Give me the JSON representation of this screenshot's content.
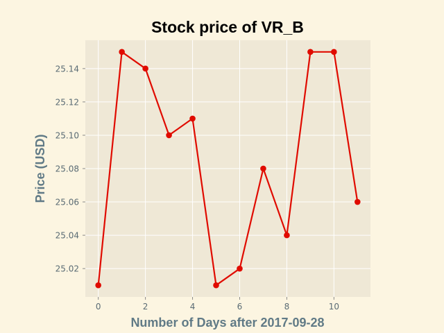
{
  "chart_data": {
    "type": "line",
    "title": "Stock price of VR_B",
    "xlabel": "Number of Days after 2017-09-28",
    "ylabel": "Price (USD)",
    "x": [
      0,
      1,
      2,
      3,
      4,
      5,
      6,
      7,
      8,
      9,
      10,
      11
    ],
    "y": [
      25.01,
      25.15,
      25.14,
      25.1,
      25.11,
      25.01,
      25.02,
      25.08,
      25.04,
      25.15,
      25.15,
      25.06
    ],
    "xticks": [
      "0",
      "2",
      "4",
      "6",
      "8",
      "10"
    ],
    "yticks": [
      "25.02",
      "25.04",
      "25.06",
      "25.08",
      "25.10",
      "25.12",
      "25.14"
    ],
    "xlim": [
      -0.55,
      11.55
    ],
    "ylim": [
      25.003,
      25.157
    ],
    "grid": true,
    "colors": {
      "line": "#e00b00",
      "marker": "#e00b00",
      "plot_background": "#efe8d6",
      "figure_background": "#fcf5e1",
      "grid": "#ffffff"
    }
  }
}
